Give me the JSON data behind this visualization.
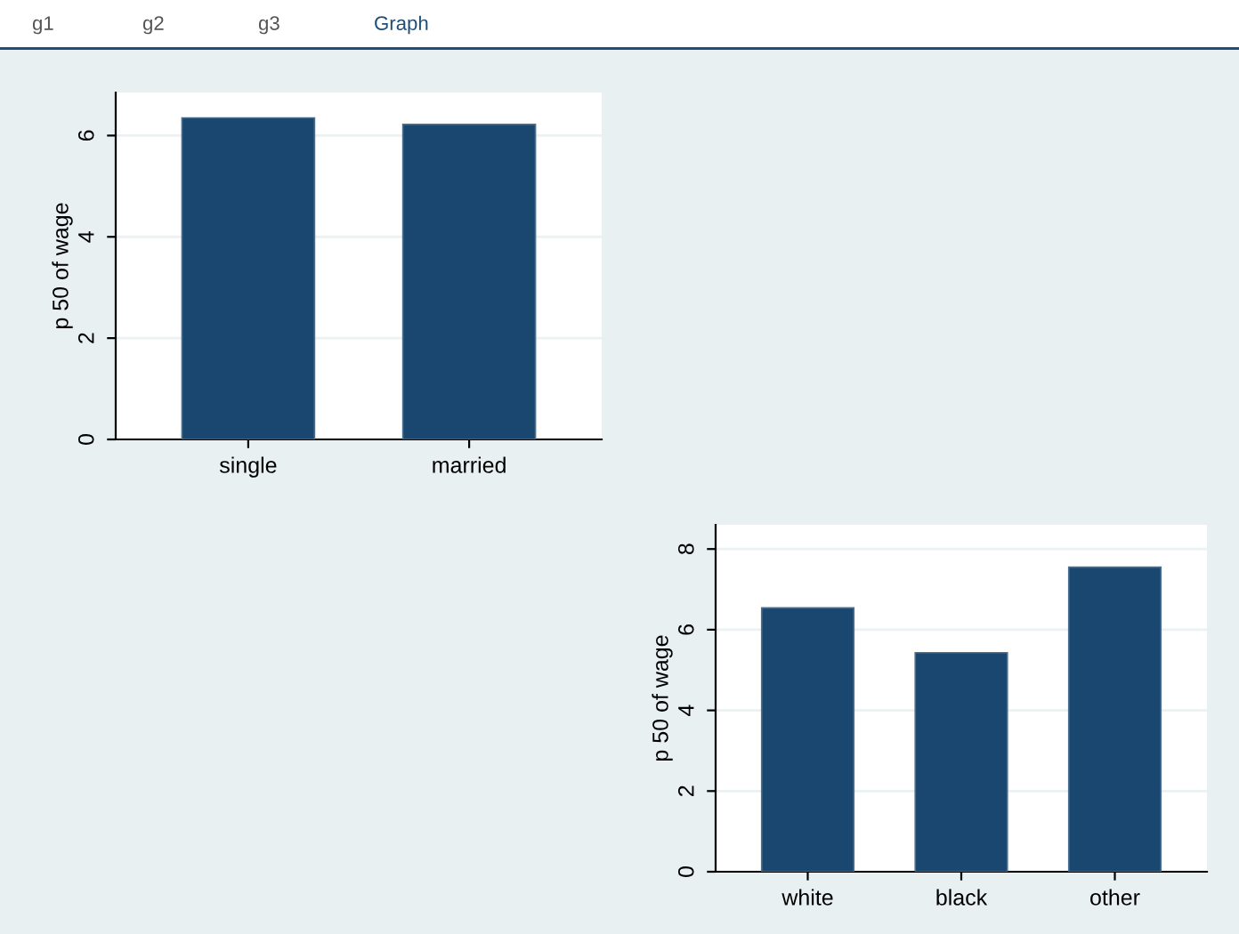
{
  "chart_data": [
    {
      "type": "bar",
      "categories": [
        "single",
        "married"
      ],
      "ylabel": "p 50 of wage",
      "color": "#1a476f",
      "values": [
        6.35,
        6.22
      ],
      "ylim": [
        0,
        6.85
      ],
      "yticks": [
        0,
        2,
        4,
        6
      ],
      "grid": "y",
      "legend": false,
      "annotations": [
        "g1",
        "g2",
        "g3",
        "Graph"
      ]
    },
    {
      "type": "bar",
      "categories": [
        "white",
        "black",
        "other"
      ],
      "ylabel": "p 50 of wage",
      "color": "#1a476f",
      "values": [
        6.54,
        5.43,
        7.55
      ],
      "ylim": [
        0,
        8.6
      ],
      "yticks": [
        0,
        2,
        4,
        6,
        8
      ],
      "grid": "y",
      "legend": false
    }
  ]
}
